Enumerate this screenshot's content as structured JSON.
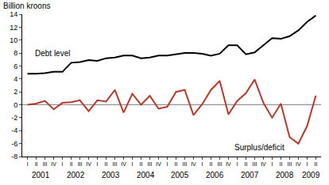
{
  "chart_data": {
    "type": "line",
    "y_label": "Billion kroons",
    "categories": [
      "I",
      "II",
      "III",
      "IV",
      "I",
      "II",
      "III",
      "IV",
      "I",
      "II",
      "III",
      "IV",
      "I",
      "II",
      "III",
      "IV",
      "I",
      "II",
      "III",
      "IV",
      "I",
      "II",
      "III",
      "IV",
      "I",
      "II",
      "III",
      "IV",
      "I",
      "II",
      "III",
      "IV",
      "I",
      "II"
    ],
    "category_groups": [
      "2001",
      "2001",
      "2001",
      "2001",
      "2002",
      "2002",
      "2002",
      "2002",
      "2003",
      "2003",
      "2003",
      "2003",
      "2004",
      "2004",
      "2004",
      "2004",
      "2005",
      "2005",
      "2005",
      "2005",
      "2006",
      "2006",
      "2006",
      "2006",
      "2007",
      "2007",
      "2007",
      "2007",
      "2008",
      "2008",
      "2008",
      "2008",
      "2009",
      "2009"
    ],
    "series": [
      {
        "name": "Debt level",
        "color": "#000000",
        "values": [
          4.8,
          4.8,
          4.9,
          5.1,
          5.1,
          6.5,
          6.6,
          6.9,
          6.8,
          7.2,
          7.3,
          7.6,
          7.6,
          7.2,
          7.3,
          7.6,
          7.6,
          7.8,
          8.0,
          8.0,
          7.9,
          7.6,
          7.9,
          9.2,
          9.2,
          7.8,
          8.1,
          9.2,
          10.3,
          10.2,
          10.6,
          11.5,
          12.8,
          13.8
        ]
      },
      {
        "name": "Surplus/deficit",
        "color": "#b03a2e",
        "values": [
          0,
          0.2,
          0.6,
          -0.7,
          0.3,
          0.4,
          0.7,
          -1.0,
          0.7,
          0.5,
          2.3,
          -1.2,
          1.7,
          0,
          1.4,
          -0.6,
          -0.3,
          2.0,
          2.3,
          -1.6,
          0.1,
          2.3,
          3.7,
          -1.5,
          0.6,
          1.8,
          3.9,
          0.3,
          -2.0,
          0.2,
          -5.0,
          -6.0,
          -3.3,
          1.4
        ]
      }
    ],
    "ylim": [
      -8,
      14
    ],
    "yticks": [
      -8,
      -6,
      -4,
      -2,
      0,
      2,
      4,
      6,
      8,
      10,
      12,
      14
    ],
    "grid": false
  }
}
